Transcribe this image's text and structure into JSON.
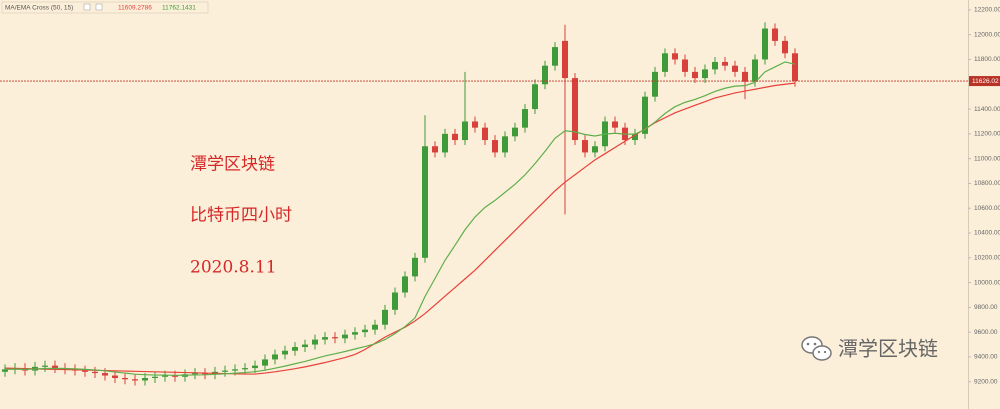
{
  "chart_data": {
    "type": "candlestick",
    "indicator": "MA/EMA Cross (50, 15)",
    "up_color": "#3f9b3a",
    "down_color": "#d8403b",
    "open": [
      9280,
      9300,
      9310,
      9290,
      9320,
      9330,
      9310,
      9300,
      9290,
      9280,
      9270,
      9250,
      9230,
      9220,
      9210,
      9230,
      9240,
      9250,
      9240,
      9260,
      9270,
      9260,
      9280,
      9290,
      9300,
      9310,
      9330,
      9380,
      9420,
      9450,
      9480,
      9500,
      9540,
      9560,
      9550,
      9580,
      9600,
      9620,
      9660,
      9780,
      9920,
      10050,
      10200,
      11100,
      11050,
      11200,
      11150,
      11300,
      11250,
      11150,
      11050,
      11180,
      11250,
      11400,
      11600,
      11750,
      11950,
      11650,
      11150,
      11050,
      11100,
      11300,
      11250,
      11150,
      11200,
      11500,
      11700,
      11850,
      11800,
      11700,
      11650,
      11720,
      11780,
      11750,
      11700,
      11620,
      11800,
      12050,
      11950,
      11850
    ],
    "high": [
      9340,
      9350,
      9350,
      9360,
      9370,
      9370,
      9350,
      9340,
      9330,
      9320,
      9310,
      9290,
      9270,
      9260,
      9270,
      9280,
      9290,
      9290,
      9300,
      9310,
      9310,
      9320,
      9330,
      9340,
      9350,
      9370,
      9420,
      9460,
      9490,
      9520,
      9540,
      9580,
      9600,
      9600,
      9620,
      9640,
      9660,
      9700,
      9820,
      9960,
      10090,
      10240,
      11350,
      11140,
      11240,
      11240,
      11700,
      11340,
      11290,
      11190,
      11220,
      11290,
      11440,
      11640,
      11790,
      11940,
      12080,
      11690,
      11190,
      11140,
      11340,
      11340,
      11290,
      11240,
      11540,
      11740,
      11890,
      11890,
      11840,
      11740,
      11760,
      11820,
      11820,
      11790,
      11740,
      11840,
      12100,
      12090,
      11990,
      11890
    ],
    "low": [
      9240,
      9260,
      9250,
      9250,
      9280,
      9270,
      9260,
      9250,
      9240,
      9230,
      9210,
      9190,
      9180,
      9170,
      9170,
      9190,
      9200,
      9200,
      9200,
      9220,
      9220,
      9220,
      9240,
      9250,
      9260,
      9270,
      9290,
      9340,
      9380,
      9410,
      9440,
      9460,
      9500,
      9510,
      9510,
      9540,
      9560,
      9580,
      9620,
      9740,
      9880,
      10010,
      10160,
      11010,
      11010,
      11110,
      11110,
      11210,
      11110,
      11010,
      11010,
      11140,
      11210,
      11360,
      11560,
      11710,
      10550,
      11110,
      11010,
      11010,
      11060,
      11210,
      11110,
      11110,
      11160,
      11460,
      11660,
      11760,
      11660,
      11610,
      11610,
      11680,
      11710,
      11660,
      11480,
      11580,
      11760,
      11910,
      11810,
      11580
    ],
    "close": [
      9300,
      9310,
      9290,
      9320,
      9330,
      9310,
      9300,
      9290,
      9280,
      9270,
      9250,
      9230,
      9220,
      9210,
      9230,
      9240,
      9250,
      9240,
      9260,
      9270,
      9260,
      9280,
      9290,
      9300,
      9310,
      9330,
      9380,
      9420,
      9450,
      9480,
      9500,
      9540,
      9560,
      9550,
      9580,
      9600,
      9620,
      9660,
      9780,
      9920,
      10050,
      10200,
      11100,
      11050,
      11200,
      11150,
      11300,
      11250,
      11150,
      11050,
      11180,
      11250,
      11400,
      11600,
      11750,
      11900,
      11650,
      11150,
      11050,
      11100,
      11300,
      11250,
      11150,
      11200,
      11500,
      11700,
      11850,
      11800,
      11700,
      11650,
      11720,
      11780,
      11750,
      11700,
      11620,
      11800,
      12050,
      11950,
      11850,
      11626.02
    ],
    "series": [
      {
        "color": "#e8403a",
        "values": [
          9310,
          9308,
          9306,
          9304,
          9302,
          9300,
          9298,
          9296,
          9294,
          9292,
          9290,
          9288,
          9286,
          9284,
          9282,
          9280,
          9278,
          9276,
          9274,
          9272,
          9270,
          9268,
          9266,
          9264,
          9262,
          9262,
          9270,
          9280,
          9292,
          9305,
          9320,
          9337,
          9355,
          9375,
          9395,
          9420,
          9460,
          9510,
          9560,
          9600,
          9640,
          9690,
          9750,
          9820,
          9890,
          9960,
          10030,
          10100,
          10180,
          10260,
          10340,
          10420,
          10500,
          10580,
          10660,
          10740,
          10810,
          10870,
          10930,
          10990,
          11040,
          11090,
          11140,
          11190,
          11240,
          11290,
          11330,
          11370,
          11400,
          11430,
          11460,
          11490,
          11510,
          11530,
          11545,
          11560,
          11575,
          11590,
          11600,
          11609.2786
        ]
      },
      {
        "color": "#5fae4c",
        "values": [
          9300,
          9302,
          9300,
          9303,
          9307,
          9308,
          9307,
          9304,
          9300,
          9295,
          9288,
          9278,
          9270,
          9261,
          9257,
          9254,
          9254,
          9252,
          9253,
          9255,
          9256,
          9260,
          9264,
          9269,
          9274,
          9281,
          9293,
          9309,
          9326,
          9345,
          9364,
          9386,
          9408,
          9425,
          9444,
          9464,
          9484,
          9506,
          9540,
          9588,
          9645,
          9715,
          9888,
          10033,
          10179,
          10301,
          10426,
          10529,
          10607,
          10663,
          10728,
          10793,
          10869,
          10960,
          11059,
          11164,
          11225,
          11216,
          11195,
          11183,
          11198,
          11205,
          11198,
          11198,
          11236,
          11295,
          11364,
          11419,
          11454,
          11478,
          11508,
          11542,
          11568,
          11585,
          11589,
          11616,
          11700,
          11740,
          11780,
          11762.1431
        ]
      }
    ],
    "ylim": [
      8980,
      12280
    ],
    "yticks": [
      {
        "value": 9200,
        "label": "9200.00"
      },
      {
        "value": 9400,
        "label": "9400.00"
      },
      {
        "value": 9600,
        "label": "9600.00"
      },
      {
        "value": 9800,
        "label": "9800.00"
      },
      {
        "value": 10000,
        "label": "10000.00"
      },
      {
        "value": 10200,
        "label": "10200.00"
      },
      {
        "value": 10400,
        "label": "10400.00"
      },
      {
        "value": 10600,
        "label": "10600.00"
      },
      {
        "value": 10800,
        "label": "10800.00"
      },
      {
        "value": 11000,
        "label": "11000.00"
      },
      {
        "value": 11200,
        "label": "11200.00"
      },
      {
        "value": 11400,
        "label": "11400.00"
      },
      {
        "value": 11800,
        "label": "11800.00"
      },
      {
        "value": 12000,
        "label": "12000.00"
      },
      {
        "value": 12200,
        "label": "12200.00"
      }
    ],
    "annotations": [
      "潭学区块链",
      "比特币四小时",
      "2020.8.11"
    ],
    "watermark": "潭学区块链"
  }
}
